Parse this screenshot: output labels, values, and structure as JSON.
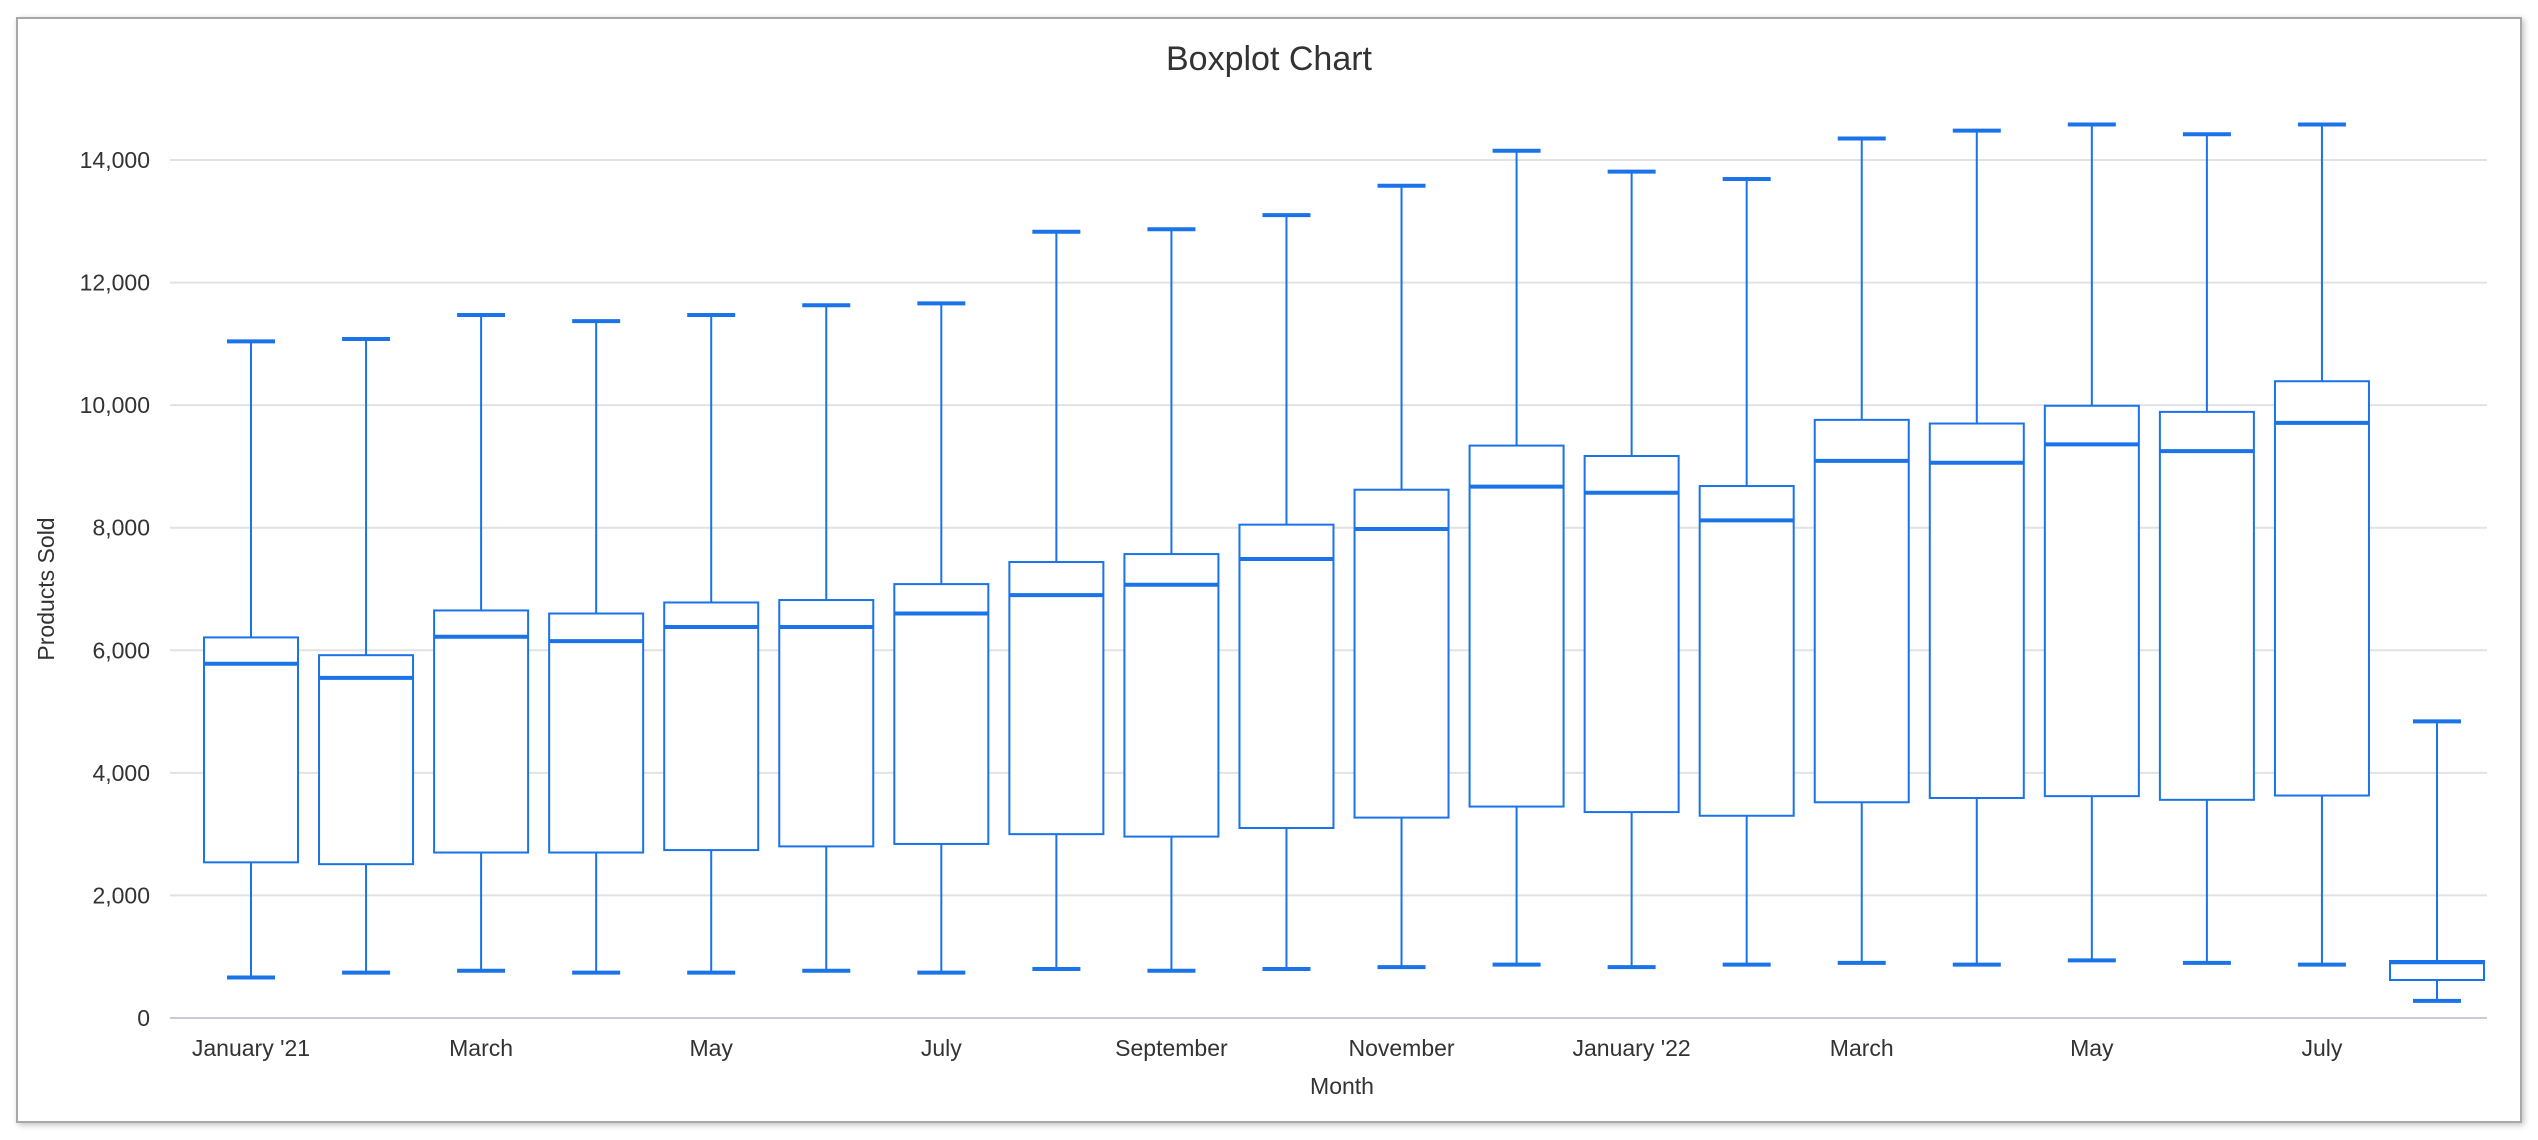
{
  "chart_data": {
    "type": "boxplot",
    "title": "Boxplot Chart",
    "xlabel": "Month",
    "ylabel": "Products Sold",
    "ylim": [
      0,
      15000
    ],
    "yticks": [
      0,
      2000,
      4000,
      6000,
      8000,
      10000,
      12000,
      14000
    ],
    "ytick_labels": [
      "0",
      "2,000",
      "4,000",
      "6,000",
      "8,000",
      "10,000",
      "12,000",
      "14,000"
    ],
    "xtick_labels": [
      "January '21",
      "",
      "March",
      "",
      "May",
      "",
      "July",
      "",
      "September",
      "",
      "November",
      "",
      "January '22",
      "",
      "March",
      "",
      "May",
      "",
      "July",
      ""
    ],
    "grid": true,
    "color": "#1a73e8",
    "series": [
      {
        "min": 660,
        "q1": 2540,
        "median": 5780,
        "q3": 6210,
        "max": 11040
      },
      {
        "min": 740,
        "q1": 2510,
        "median": 5550,
        "q3": 5920,
        "max": 11080
      },
      {
        "min": 770,
        "q1": 2700,
        "median": 6220,
        "q3": 6650,
        "max": 11470
      },
      {
        "min": 740,
        "q1": 2700,
        "median": 6150,
        "q3": 6600,
        "max": 11370
      },
      {
        "min": 740,
        "q1": 2740,
        "median": 6380,
        "q3": 6780,
        "max": 11470
      },
      {
        "min": 770,
        "q1": 2800,
        "median": 6380,
        "q3": 6820,
        "max": 11630
      },
      {
        "min": 740,
        "q1": 2840,
        "median": 6600,
        "q3": 7080,
        "max": 11660
      },
      {
        "min": 800,
        "q1": 3000,
        "median": 6900,
        "q3": 7440,
        "max": 12830
      },
      {
        "min": 770,
        "q1": 2960,
        "median": 7070,
        "q3": 7570,
        "max": 12870
      },
      {
        "min": 800,
        "q1": 3100,
        "median": 7490,
        "q3": 8050,
        "max": 13100
      },
      {
        "min": 830,
        "q1": 3270,
        "median": 7980,
        "q3": 8620,
        "max": 13580
      },
      {
        "min": 870,
        "q1": 3450,
        "median": 8670,
        "q3": 9340,
        "max": 14150
      },
      {
        "min": 830,
        "q1": 3360,
        "median": 8570,
        "q3": 9170,
        "max": 13810
      },
      {
        "min": 870,
        "q1": 3300,
        "median": 8120,
        "q3": 8680,
        "max": 13690
      },
      {
        "min": 900,
        "q1": 3520,
        "median": 9090,
        "q3": 9760,
        "max": 14350
      },
      {
        "min": 870,
        "q1": 3590,
        "median": 9060,
        "q3": 9700,
        "max": 14480
      },
      {
        "min": 940,
        "q1": 3620,
        "median": 9360,
        "q3": 9990,
        "max": 14580
      },
      {
        "min": 900,
        "q1": 3560,
        "median": 9250,
        "q3": 9890,
        "max": 14420
      },
      {
        "min": 870,
        "q1": 3630,
        "median": 9710,
        "q3": 10390,
        "max": 14580
      },
      {
        "min": 280,
        "q1": 620,
        "median": 910,
        "q3": 930,
        "max": 4840
      }
    ]
  }
}
